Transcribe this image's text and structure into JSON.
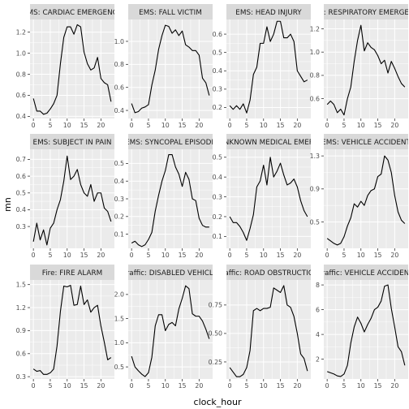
{
  "chart_data": {
    "type": "line",
    "facet_layout": "3x4 grid, free y scales",
    "xlabel": "clock_hour",
    "ylabel": "mn",
    "x_ticks": [
      0,
      5,
      10,
      15,
      20
    ],
    "xlim": [
      -1,
      24
    ],
    "colors": {
      "panel_bg": "#ebebeb",
      "strip_bg": "#d9d9d9",
      "grid_major": "#ffffff",
      "line": "#000000"
    },
    "panels": [
      {
        "title": "EMS: CARDIAC EMERGENCY",
        "ylim": [
          0.38,
          1.32
        ],
        "y_ticks": [
          0.4,
          0.6,
          0.8,
          1.0,
          1.2
        ],
        "y_tick_labels": [
          "0.4",
          "0.6",
          "0.8",
          "1.0",
          "1.2"
        ],
        "values": [
          0.57,
          0.45,
          0.45,
          0.42,
          0.43,
          0.47,
          0.52,
          0.6,
          0.9,
          1.15,
          1.25,
          1.25,
          1.18,
          1.27,
          1.25,
          1.01,
          0.9,
          0.84,
          0.86,
          0.96,
          0.76,
          0.72,
          0.7,
          0.54
        ]
      },
      {
        "title": "EMS: FALL VICTIM",
        "ylim": [
          0.33,
          1.19
        ],
        "y_ticks": [
          0.4,
          0.6,
          0.8,
          1.0
        ],
        "y_tick_labels": [
          "0.4",
          "0.6",
          "0.8",
          "1.0"
        ],
        "values": [
          0.46,
          0.38,
          0.39,
          0.42,
          0.43,
          0.45,
          0.62,
          0.75,
          0.93,
          1.05,
          1.14,
          1.13,
          1.07,
          1.1,
          1.05,
          1.09,
          0.97,
          0.95,
          0.92,
          0.92,
          0.88,
          0.68,
          0.64,
          0.53
        ]
      },
      {
        "title": "EMS: HEAD INJURY",
        "ylim": [
          0.14,
          0.68
        ],
        "y_ticks": [
          0.2,
          0.3,
          0.4,
          0.5,
          0.6
        ],
        "y_tick_labels": [
          "0.2",
          "0.3",
          "0.4",
          "0.5",
          "0.6"
        ],
        "values": [
          0.21,
          0.19,
          0.21,
          0.19,
          0.22,
          0.17,
          0.24,
          0.38,
          0.42,
          0.55,
          0.55,
          0.64,
          0.56,
          0.6,
          0.67,
          0.67,
          0.58,
          0.58,
          0.6,
          0.56,
          0.4,
          0.37,
          0.34,
          0.35
        ]
      },
      {
        "title": "EMS: RESPIRATORY EMERGENCY",
        "ylim": [
          0.43,
          1.28
        ],
        "y_ticks": [
          0.6,
          0.8,
          1.0,
          1.2
        ],
        "y_tick_labels": [
          "0.6",
          "0.8",
          "1.0",
          "1.2"
        ],
        "values": [
          0.55,
          0.58,
          0.55,
          0.48,
          0.51,
          0.46,
          0.6,
          0.7,
          0.92,
          1.1,
          1.23,
          1.01,
          1.08,
          1.04,
          1.02,
          0.97,
          0.9,
          0.93,
          0.82,
          0.92,
          0.86,
          0.79,
          0.73,
          0.7
        ]
      },
      {
        "title": "EMS: SUBJECT IN PAIN",
        "ylim": [
          0.17,
          0.76
        ],
        "y_ticks": [
          0.3,
          0.4,
          0.5,
          0.6,
          0.7
        ],
        "y_tick_labels": [
          "0.3",
          "0.4",
          "0.5",
          "0.6",
          "0.7"
        ],
        "values": [
          0.21,
          0.32,
          0.22,
          0.28,
          0.19,
          0.29,
          0.32,
          0.4,
          0.46,
          0.57,
          0.72,
          0.58,
          0.6,
          0.64,
          0.55,
          0.5,
          0.48,
          0.55,
          0.45,
          0.5,
          0.5,
          0.41,
          0.39,
          0.33
        ]
      },
      {
        "title": "EMS: SYNCOPAL EPISODE",
        "ylim": [
          0.02,
          0.58
        ],
        "y_ticks": [
          0.1,
          0.2,
          0.3,
          0.4,
          0.5
        ],
        "y_tick_labels": [
          "0.1",
          "0.2",
          "0.3",
          "0.4",
          "0.5"
        ],
        "values": [
          0.05,
          0.06,
          0.04,
          0.03,
          0.04,
          0.07,
          0.11,
          0.23,
          0.32,
          0.4,
          0.46,
          0.55,
          0.55,
          0.48,
          0.44,
          0.37,
          0.45,
          0.41,
          0.3,
          0.29,
          0.19,
          0.15,
          0.14,
          0.14
        ]
      },
      {
        "title": "EMS: UNKNOWN MEDICAL EMERGENCY",
        "ylim": [
          0.04,
          0.54
        ],
        "y_ticks": [
          0.1,
          0.2,
          0.3,
          0.4,
          0.5
        ],
        "y_tick_labels": [
          "0.1",
          "0.2",
          "0.3",
          "0.4",
          "0.5"
        ],
        "values": [
          0.2,
          0.17,
          0.17,
          0.15,
          0.12,
          0.08,
          0.14,
          0.21,
          0.35,
          0.38,
          0.46,
          0.36,
          0.5,
          0.4,
          0.43,
          0.47,
          0.41,
          0.36,
          0.37,
          0.39,
          0.35,
          0.28,
          0.23,
          0.2
        ]
      },
      {
        "title": "EMS: VEHICLE ACCIDENT",
        "ylim": [
          0.18,
          1.38
        ],
        "y_ticks": [
          0.5,
          0.9,
          1.3
        ],
        "y_tick_labels": [
          "0.5",
          "0.9",
          "1.3"
        ],
        "values": [
          0.3,
          0.27,
          0.24,
          0.22,
          0.24,
          0.32,
          0.45,
          0.55,
          0.72,
          0.68,
          0.75,
          0.7,
          0.82,
          0.88,
          0.9,
          1.05,
          1.08,
          1.3,
          1.25,
          1.1,
          0.82,
          0.62,
          0.52,
          0.48
        ]
      },
      {
        "title": "Fire: FIRE ALARM",
        "ylim": [
          0.27,
          1.56
        ],
        "y_ticks": [
          0.3,
          0.6,
          0.9,
          1.2,
          1.5
        ],
        "y_tick_labels": [
          "0.3",
          "0.6",
          "0.9",
          "1.2",
          "1.5"
        ],
        "values": [
          0.4,
          0.37,
          0.38,
          0.33,
          0.33,
          0.35,
          0.4,
          0.7,
          1.15,
          1.48,
          1.47,
          1.49,
          1.23,
          1.24,
          1.48,
          1.24,
          1.3,
          1.14,
          1.2,
          1.23,
          0.96,
          0.75,
          0.52,
          0.55
        ]
      },
      {
        "title": "Traffic: DISABLED VEHICLE",
        "ylim": [
          0.25,
          2.3
        ],
        "y_ticks": [
          0.5,
          1.0,
          1.5,
          2.0
        ],
        "y_tick_labels": [
          "0.5",
          "1.0",
          "1.5",
          "2.0"
        ],
        "values": [
          0.72,
          0.5,
          0.42,
          0.35,
          0.3,
          0.38,
          0.7,
          1.35,
          1.58,
          1.58,
          1.25,
          1.38,
          1.42,
          1.35,
          1.7,
          1.92,
          2.18,
          2.12,
          1.6,
          1.55,
          1.55,
          1.45,
          1.28,
          1.08
        ]
      },
      {
        "title": "Traffic: ROAD OBSTRUCTION",
        "ylim": [
          0.1,
          0.97
        ],
        "y_ticks": [
          0.25,
          0.5,
          0.75
        ],
        "y_tick_labels": [
          "0.25",
          "0.50",
          "0.75"
        ],
        "values": [
          0.2,
          0.16,
          0.12,
          0.12,
          0.14,
          0.2,
          0.35,
          0.7,
          0.72,
          0.7,
          0.72,
          0.72,
          0.73,
          0.9,
          0.88,
          0.86,
          0.92,
          0.75,
          0.73,
          0.65,
          0.5,
          0.32,
          0.28,
          0.17
        ]
      },
      {
        "title": "Traffic: VEHICLE ACCIDENT",
        "ylim": [
          0.4,
          8.4
        ],
        "y_ticks": [
          2,
          4,
          6,
          8
        ],
        "y_tick_labels": [
          "2",
          "4",
          "6",
          "8"
        ],
        "values": [
          1.0,
          0.9,
          0.8,
          0.65,
          0.6,
          0.8,
          1.5,
          3.3,
          4.6,
          5.4,
          4.9,
          4.2,
          4.8,
          5.3,
          6.0,
          6.2,
          6.7,
          7.9,
          8.0,
          6.1,
          4.6,
          3.0,
          2.6,
          1.5
        ]
      }
    ]
  }
}
